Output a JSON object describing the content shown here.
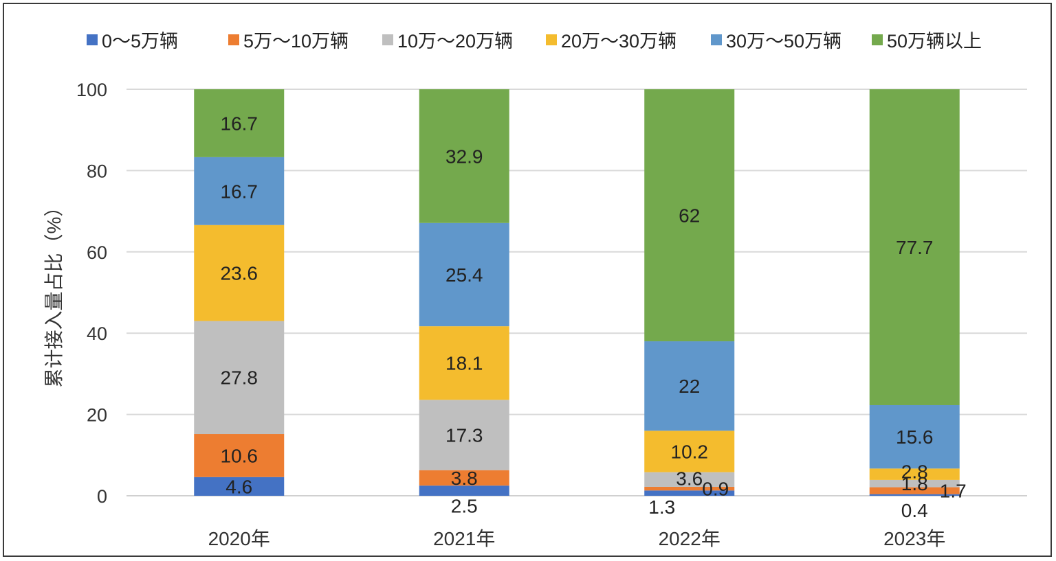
{
  "chart_data": {
    "type": "bar",
    "stacked": true,
    "title": "",
    "xlabel": "",
    "ylabel": "累计接入量占比（%）",
    "ylim": [
      0,
      100
    ],
    "yticks": [
      0,
      20,
      40,
      60,
      80,
      100
    ],
    "grid": true,
    "legend_position": "top",
    "categories": [
      "2020年",
      "2021年",
      "2022年",
      "2023年"
    ],
    "series": [
      {
        "name": "0～5万辆",
        "color": "#4472C4",
        "values": [
          4.6,
          2.5,
          1.3,
          0.4
        ],
        "labels": [
          "4.6",
          "2.5",
          "1.3",
          "0.4"
        ]
      },
      {
        "name": "5万～10万辆",
        "color": "#ED7D31",
        "values": [
          10.6,
          3.8,
          0.9,
          1.7
        ],
        "labels": [
          "10.6",
          "3.8",
          "0.9",
          "1.7"
        ]
      },
      {
        "name": "10万～20万辆",
        "color": "#BFBFBF",
        "values": [
          27.8,
          17.3,
          3.6,
          1.8
        ],
        "labels": [
          "27.8",
          "17.3",
          "3.6",
          "1.8"
        ]
      },
      {
        "name": "20万～30万辆",
        "color": "#F4BC2E",
        "values": [
          23.6,
          18.1,
          10.2,
          2.8
        ],
        "labels": [
          "23.6",
          "18.1",
          "10.2",
          "2.8"
        ]
      },
      {
        "name": "30万～50万辆",
        "color": "#6097CB",
        "values": [
          16.7,
          25.4,
          22,
          15.6
        ],
        "labels": [
          "16.7",
          "25.4",
          "22",
          "15.6"
        ]
      },
      {
        "name": "50万辆以上",
        "color": "#74A94D",
        "values": [
          16.7,
          32.9,
          62,
          77.7
        ],
        "labels": [
          "16.7",
          "32.9",
          "62",
          "77.7"
        ]
      }
    ]
  }
}
